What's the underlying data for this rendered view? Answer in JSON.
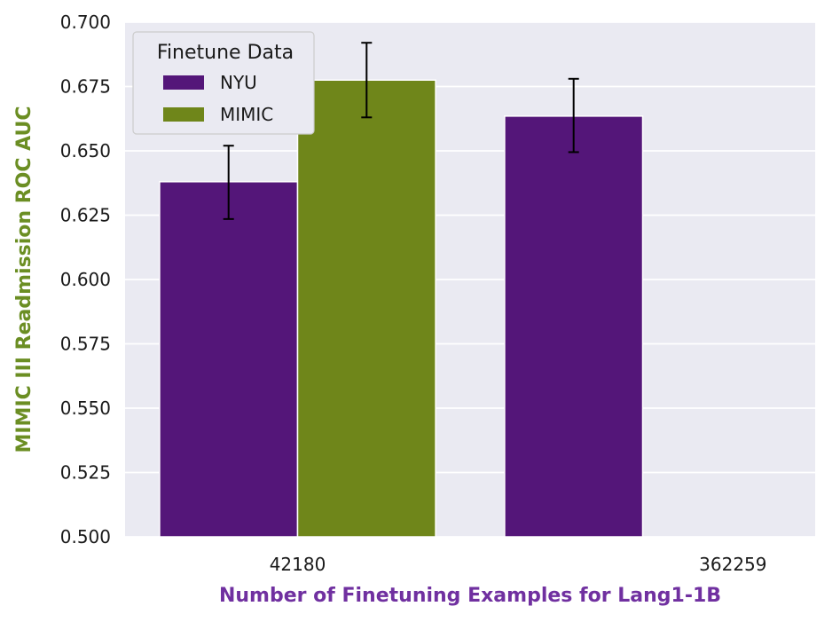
{
  "chart_data": {
    "type": "bar",
    "title": "",
    "xlabel": "Number of Finetuning Examples for Lang1-1B",
    "ylabel": "MIMIC III Readmission ROC AUC",
    "xlabel_color": "#7030a0",
    "ylabel_color": "#6b8e23",
    "categories": [
      "42180",
      "362259"
    ],
    "ylim": [
      0.5,
      0.7
    ],
    "yticks": [
      "0.500",
      "0.525",
      "0.550",
      "0.575",
      "0.600",
      "0.625",
      "0.650",
      "0.675",
      "0.700"
    ],
    "grid": true,
    "background": "#eaeaf2",
    "legend": {
      "title": "Finetune Data",
      "placement": "top-left"
    },
    "series": [
      {
        "name": "NYU",
        "color": "#541679",
        "values": [
          0.638,
          0.6635
        ],
        "error_low": [
          0.6235,
          0.6495
        ],
        "error_high": [
          0.652,
          0.678
        ]
      },
      {
        "name": "MIMIC",
        "color": "#6f861a",
        "values": [
          0.6775,
          null
        ],
        "error_low": [
          0.663,
          null
        ],
        "error_high": [
          0.692,
          null
        ]
      }
    ]
  }
}
